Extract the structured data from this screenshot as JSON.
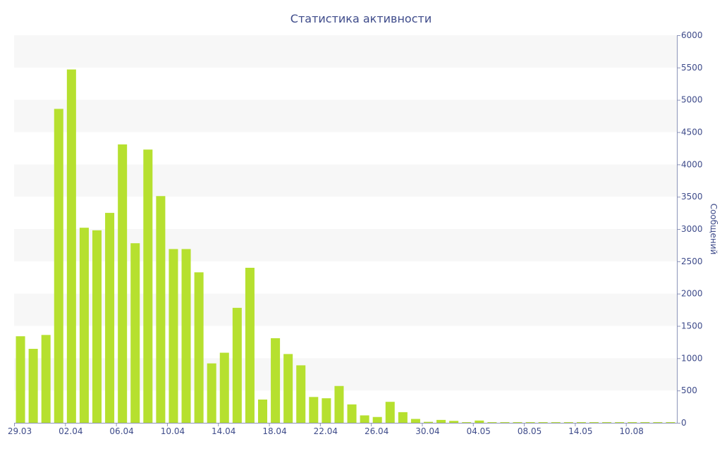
{
  "chart_data": {
    "type": "bar",
    "title": "Статистика активности",
    "xlabel": "",
    "ylabel": "Сообщений",
    "ylim": [
      0,
      6000
    ],
    "y_ticks": [
      0,
      500,
      1000,
      1500,
      2000,
      2500,
      3000,
      3500,
      4000,
      4500,
      5000,
      5500,
      6000
    ],
    "y_axis_side": "right",
    "grid": "alternating horizontal bands",
    "legend": "none",
    "x_tick_labels": [
      "29.03",
      "02.04",
      "06.04",
      "10.04",
      "14.04",
      "18.04",
      "22.04",
      "26.04",
      "30.04",
      "04.05",
      "08.05",
      "14.05",
      "10.08"
    ],
    "values": [
      1340,
      1145,
      1360,
      4860,
      5470,
      3020,
      2980,
      3250,
      4310,
      2780,
      4230,
      3510,
      2690,
      2690,
      2330,
      920,
      1085,
      1780,
      2400,
      360,
      1310,
      1065,
      890,
      400,
      380,
      570,
      285,
      115,
      90,
      325,
      165,
      60,
      15,
      45,
      30,
      10,
      35,
      10,
      10,
      10,
      10,
      10,
      10,
      10,
      10,
      10,
      10,
      10,
      10,
      10,
      10,
      10
    ],
    "colors": {
      "bar": "#b6e02f",
      "band": "#f7f7f7",
      "text": "#3e4b8a",
      "axis": "#8b93b8"
    }
  }
}
